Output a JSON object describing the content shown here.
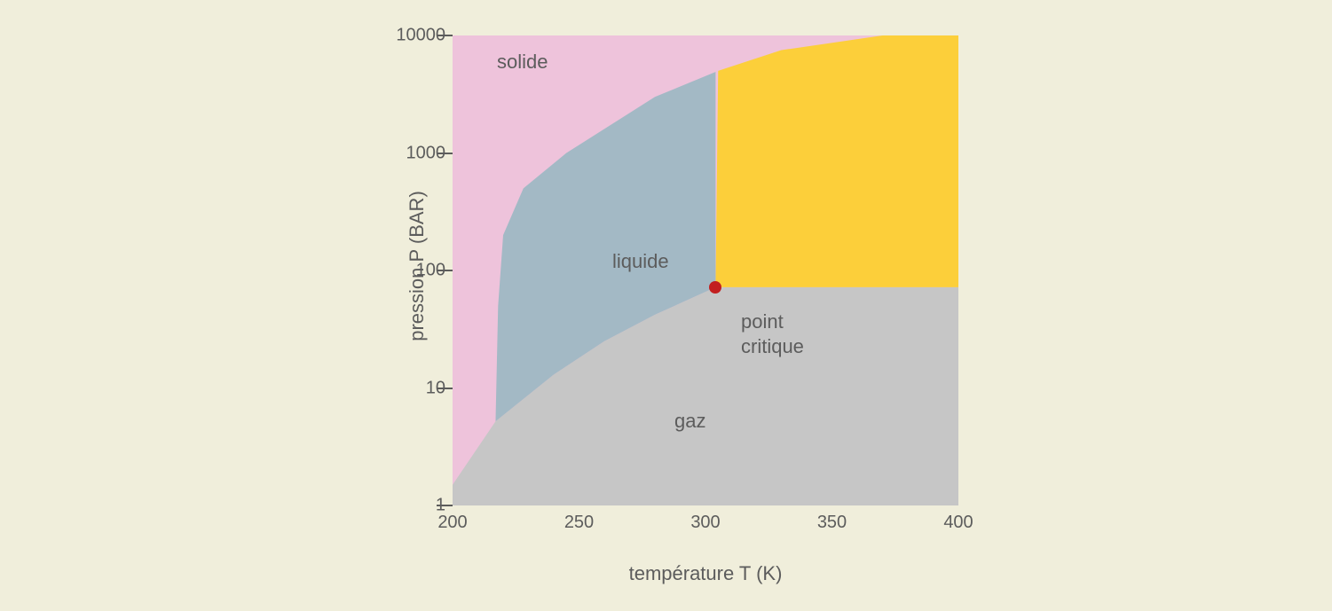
{
  "chart": {
    "type": "phase-diagram",
    "background_color": "#f0eedb",
    "axis_text_color": "#5c5c5c",
    "label_fontsize": 22,
    "tick_fontsize": 20,
    "x_axis": {
      "label": "température T (K)",
      "min": 200,
      "max": 400,
      "ticks": [
        200,
        250,
        300,
        350,
        400
      ],
      "scale": "linear"
    },
    "y_axis": {
      "label": "pression P (BAR)",
      "min": 1,
      "max": 10000,
      "ticks": [
        1,
        10,
        100,
        1000,
        10000
      ],
      "scale": "log"
    },
    "regions": {
      "solide": {
        "label": "solide",
        "color": "#eec3db"
      },
      "liquide": {
        "label": "liquide",
        "color": "#a3b9c5"
      },
      "gaz": {
        "label": "gaz",
        "color": "#c6c6c6"
      },
      "supercritical": {
        "color": "#fccf3a"
      }
    },
    "critical_point": {
      "label_line1": "point",
      "label_line2": "critique",
      "T": 304,
      "P": 72,
      "color": "#c21f1f"
    },
    "boundaries": {
      "solid_liquid_curve": [
        {
          "T": 217,
          "P": 5.2
        },
        {
          "T": 218,
          "P": 50
        },
        {
          "T": 220,
          "P": 200
        },
        {
          "T": 228,
          "P": 500
        },
        {
          "T": 245,
          "P": 1000
        },
        {
          "T": 280,
          "P": 3000
        },
        {
          "T": 305,
          "P": 5000
        },
        {
          "T": 330,
          "P": 7500
        },
        {
          "T": 370,
          "P": 10000
        }
      ],
      "liquid_gas_curve": [
        {
          "T": 200,
          "P": 1.5
        },
        {
          "T": 217,
          "P": 5.2
        },
        {
          "T": 240,
          "P": 13
        },
        {
          "T": 260,
          "P": 25
        },
        {
          "T": 280,
          "P": 42
        },
        {
          "T": 304,
          "P": 72
        }
      ],
      "solid_gas_curve": [
        {
          "T": 200,
          "P": 1.5
        },
        {
          "T": 217,
          "P": 5.2
        }
      ]
    }
  }
}
